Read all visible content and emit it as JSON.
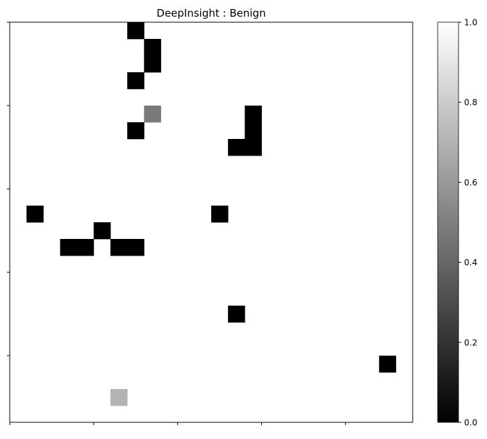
{
  "chart_data": {
    "type": "heatmap",
    "title": "DeepInsight : Benign",
    "xlabel": "",
    "ylabel": "",
    "rows": 24,
    "cols": 24,
    "background_value": 1.0,
    "cells": [
      {
        "row": 0,
        "col": 7,
        "value": 0.0
      },
      {
        "row": 1,
        "col": 8,
        "value": 0.0
      },
      {
        "row": 2,
        "col": 8,
        "value": 0.0
      },
      {
        "row": 3,
        "col": 7,
        "value": 0.0
      },
      {
        "row": 5,
        "col": 8,
        "value": 0.48
      },
      {
        "row": 5,
        "col": 14,
        "value": 0.0
      },
      {
        "row": 6,
        "col": 7,
        "value": 0.0
      },
      {
        "row": 6,
        "col": 14,
        "value": 0.0
      },
      {
        "row": 7,
        "col": 13,
        "value": 0.0
      },
      {
        "row": 7,
        "col": 14,
        "value": 0.0
      },
      {
        "row": 11,
        "col": 1,
        "value": 0.0
      },
      {
        "row": 11,
        "col": 12,
        "value": 0.0
      },
      {
        "row": 12,
        "col": 5,
        "value": 0.0
      },
      {
        "row": 13,
        "col": 3,
        "value": 0.0
      },
      {
        "row": 13,
        "col": 4,
        "value": 0.0
      },
      {
        "row": 13,
        "col": 6,
        "value": 0.0
      },
      {
        "row": 13,
        "col": 7,
        "value": 0.0
      },
      {
        "row": 17,
        "col": 13,
        "value": 0.0
      },
      {
        "row": 20,
        "col": 22,
        "value": 0.0
      },
      {
        "row": 22,
        "col": 6,
        "value": 0.7
      }
    ],
    "colormap": "gray",
    "colorbar": {
      "range": [
        0.0,
        1.0
      ],
      "ticks": [
        "0.0",
        "0.2",
        "0.4",
        "0.6",
        "0.8",
        "1.0"
      ]
    },
    "x_tick_count": 5,
    "y_tick_count": 5,
    "grid": false
  }
}
